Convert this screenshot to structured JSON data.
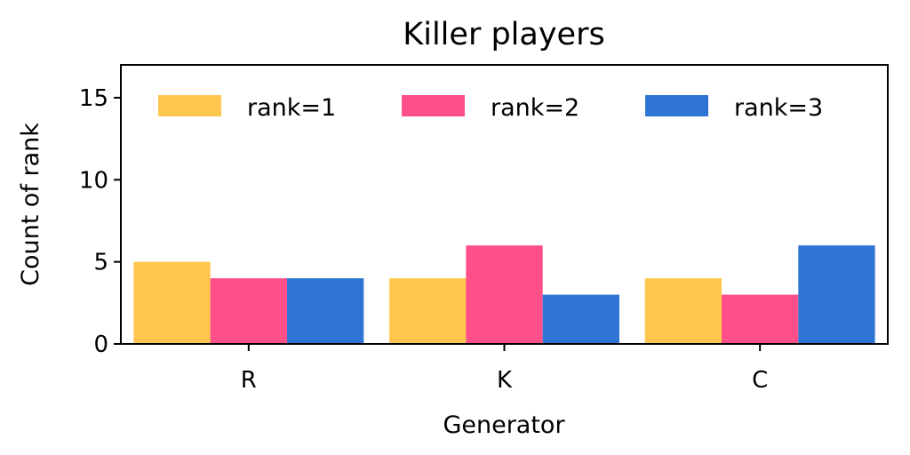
{
  "chart_data": {
    "type": "bar",
    "title": "Killer players",
    "xlabel": "Generator",
    "ylabel": "Count of rank",
    "categories": [
      "R",
      "K",
      "C"
    ],
    "series": [
      {
        "name": "rank=1",
        "values": [
          5,
          4,
          4
        ],
        "color": "#FFC64F"
      },
      {
        "name": "rank=2",
        "values": [
          4,
          6,
          3
        ],
        "color": "#FF4F88"
      },
      {
        "name": "rank=3",
        "values": [
          4,
          3,
          6
        ],
        "color": "#2D74D3"
      }
    ],
    "ylim": [
      0,
      17
    ],
    "yticks": [
      0,
      5,
      10,
      15
    ],
    "legend_position": "top",
    "grid": false
  }
}
